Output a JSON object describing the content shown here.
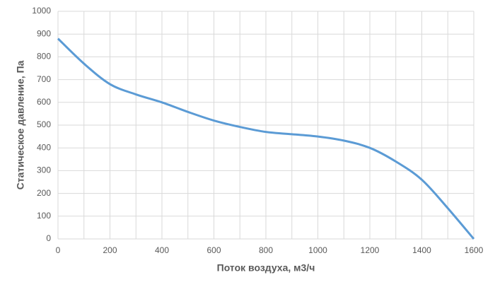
{
  "chart_data": {
    "type": "line",
    "x_label": "Поток воздуха, м3/ч",
    "y_label": "Статическое давление, Па",
    "x": [
      0,
      100,
      200,
      300,
      400,
      500,
      600,
      700,
      800,
      900,
      1000,
      1100,
      1200,
      1300,
      1400,
      1500,
      1600
    ],
    "series": [
      {
        "color": "#5b9bd5",
        "values": [
          880,
          770,
          680,
          635,
          600,
          558,
          520,
          492,
          470,
          460,
          450,
          432,
          400,
          340,
          260,
          135,
          0
        ]
      }
    ],
    "xlim": [
      0,
      1600
    ],
    "xticks": [
      0,
      200,
      400,
      600,
      800,
      1000,
      1200,
      1400,
      1600
    ],
    "xminorgrid": [
      100,
      300,
      500,
      700,
      900,
      1100,
      1300,
      1500
    ],
    "ylim": [
      0,
      1000
    ],
    "yticks": [
      0,
      100,
      200,
      300,
      400,
      500,
      600,
      700,
      800,
      900,
      1000
    ],
    "grid": true,
    "smooth": true
  }
}
